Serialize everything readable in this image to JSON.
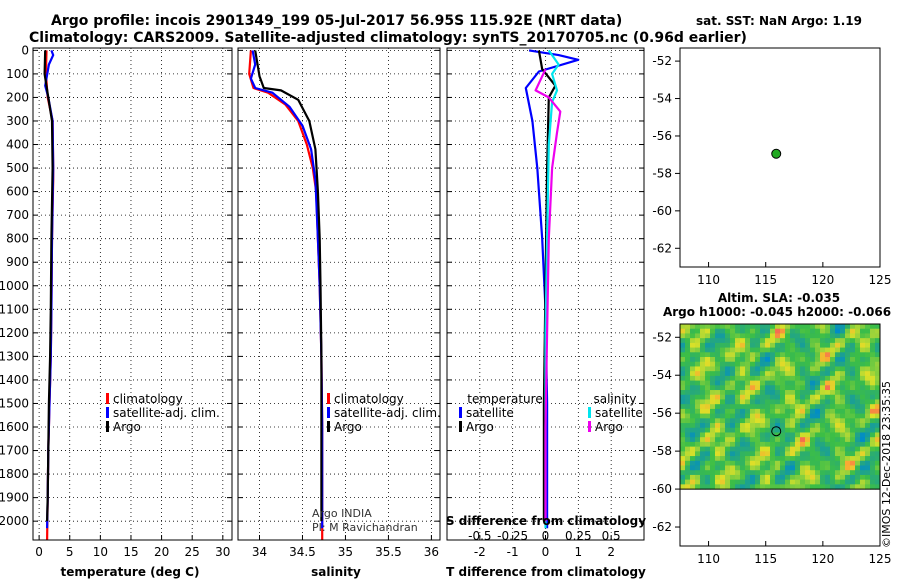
{
  "header": {
    "title_line1": "Argo profile: incois 2901349_199 05-Jul-2017 56.95S 115.92E (NRT data)",
    "title_line2": "Climatology: CARS2009. Satellite-adjusted climatology: synTS_20170705.nc (0.96d earlier)"
  },
  "colors": {
    "climatology": "#ff0000",
    "satellite": "#0000ff",
    "argo": "#000000",
    "sal_satellite": "#00e5ee",
    "sal_argo": "#ee00ee",
    "marker": "#22aa22"
  },
  "chart_data": [
    {
      "id": "temperature",
      "type": "line",
      "xlabel": "temperature (deg C)",
      "xlim": [
        -1,
        31.5
      ],
      "ylim": [
        2080,
        -10
      ],
      "xticks": [
        0,
        5,
        10,
        15,
        20,
        25,
        30
      ],
      "yticks": [
        0,
        100,
        200,
        300,
        400,
        500,
        600,
        700,
        800,
        900,
        1000,
        1100,
        1200,
        1300,
        1400,
        1500,
        1600,
        1700,
        1800,
        1900,
        2000
      ],
      "legend": [
        "climatology",
        "satellite-adj. clim.",
        "Argo"
      ],
      "series": [
        {
          "name": "climatology",
          "color": "#ff0000",
          "points": [
            [
              1.2,
              0
            ],
            [
              1.1,
              100
            ],
            [
              1.4,
              200
            ],
            [
              2.2,
              300
            ],
            [
              2.3,
              500
            ],
            [
              2.3,
              550
            ],
            [
              2.1,
              800
            ],
            [
              2.0,
              1100
            ],
            [
              1.9,
              1300
            ],
            [
              1.7,
              1500
            ],
            [
              1.5,
              1700
            ],
            [
              1.4,
              1900
            ],
            [
              1.3,
              2080
            ]
          ]
        },
        {
          "name": "satellite-adj. clim.",
          "color": "#0000ff",
          "points": [
            [
              2.0,
              0
            ],
            [
              2.3,
              20
            ],
            [
              1.6,
              60
            ],
            [
              1.0,
              150
            ],
            [
              1.5,
              200
            ],
            [
              2.2,
              300
            ],
            [
              2.3,
              500
            ],
            [
              2.1,
              800
            ],
            [
              2.0,
              1100
            ],
            [
              1.9,
              1300
            ],
            [
              1.7,
              1500
            ],
            [
              1.5,
              1700
            ],
            [
              1.4,
              1900
            ],
            [
              1.3,
              2030
            ]
          ]
        },
        {
          "name": "Argo",
          "color": "#000000",
          "points": [
            [
              1.0,
              0
            ],
            [
              0.9,
              100
            ],
            [
              1.5,
              200
            ],
            [
              2.1,
              300
            ],
            [
              2.2,
              500
            ],
            [
              2.0,
              800
            ],
            [
              1.9,
              1100
            ],
            [
              1.8,
              1300
            ],
            [
              1.6,
              1500
            ],
            [
              1.5,
              1700
            ],
            [
              1.4,
              1900
            ],
            [
              1.3,
              2000
            ]
          ]
        }
      ]
    },
    {
      "id": "salinity",
      "type": "line",
      "xlabel": "salinity",
      "xlim": [
        33.75,
        36.1
      ],
      "ylim": [
        2080,
        -10
      ],
      "xticks": [
        34,
        34.5,
        35,
        35.5,
        36
      ],
      "xticklabels": [
        "34",
        "34.5",
        "35",
        "35.5",
        "36"
      ],
      "legend": [
        "climatology",
        "satellite-adj. clim.",
        "Argo"
      ],
      "annotation": [
        "Argo INDIA",
        "PI: M Ravichandran"
      ],
      "series": [
        {
          "name": "climatology",
          "color": "#ff0000",
          "points": [
            [
              33.9,
              0
            ],
            [
              33.88,
              100
            ],
            [
              33.93,
              160
            ],
            [
              34.1,
              180
            ],
            [
              34.3,
              230
            ],
            [
              34.45,
              300
            ],
            [
              34.55,
              400
            ],
            [
              34.62,
              500
            ],
            [
              34.66,
              600
            ],
            [
              34.68,
              800
            ],
            [
              34.7,
              1000
            ],
            [
              34.72,
              1300
            ],
            [
              34.73,
              1600
            ],
            [
              34.73,
              1900
            ],
            [
              34.73,
              2080
            ]
          ]
        },
        {
          "name": "satellite-adj. clim.",
          "color": "#0000ff",
          "points": [
            [
              33.92,
              0
            ],
            [
              33.95,
              60
            ],
            [
              33.9,
              120
            ],
            [
              33.95,
              160
            ],
            [
              34.15,
              180
            ],
            [
              34.35,
              240
            ],
            [
              34.5,
              320
            ],
            [
              34.6,
              420
            ],
            [
              34.65,
              550
            ],
            [
              34.68,
              800
            ],
            [
              34.7,
              1000
            ],
            [
              34.72,
              1300
            ],
            [
              34.73,
              1600
            ],
            [
              34.73,
              1900
            ],
            [
              34.73,
              2030
            ]
          ]
        },
        {
          "name": "Argo",
          "color": "#000000",
          "points": [
            [
              33.95,
              0
            ],
            [
              34.0,
              110
            ],
            [
              34.05,
              160
            ],
            [
              34.25,
              170
            ],
            [
              34.45,
              210
            ],
            [
              34.58,
              300
            ],
            [
              34.65,
              420
            ],
            [
              34.68,
              600
            ],
            [
              34.7,
              800
            ],
            [
              34.71,
              1000
            ],
            [
              34.72,
              1300
            ],
            [
              34.72,
              1600
            ],
            [
              34.72,
              2000
            ]
          ]
        }
      ]
    },
    {
      "id": "difference",
      "type": "line",
      "xlabel": "T difference from climatology",
      "xlabel_top": "S difference from climatology",
      "xlim": [
        -3,
        3
      ],
      "ylim": [
        2080,
        -10
      ],
      "xticks": [
        -2,
        -1,
        0,
        1,
        2
      ],
      "xticklabels": [
        "-2",
        "-1",
        "0",
        "1",
        "2"
      ],
      "sticks": [
        -0.5,
        -0.25,
        0,
        0.25,
        0.5
      ],
      "sticklabels": [
        "-0.5",
        "-0.25",
        "0",
        "0.25",
        "0.5"
      ],
      "legend_temperature": {
        "title": "temperature",
        "items": [
          "satellite",
          "Argo"
        ]
      },
      "legend_salinity": {
        "title": "salinity",
        "items": [
          "satellite",
          "Argo"
        ]
      },
      "series": [
        {
          "name": "T satellite",
          "color": "#0000ff",
          "points": [
            [
              -0.5,
              0
            ],
            [
              0.4,
              20
            ],
            [
              1.0,
              40
            ],
            [
              -0.2,
              90
            ],
            [
              -0.6,
              160
            ],
            [
              -0.4,
              300
            ],
            [
              -0.25,
              500
            ],
            [
              -0.1,
              800
            ],
            [
              0.0,
              1100
            ],
            [
              0.05,
              1500
            ],
            [
              0.05,
              2030
            ]
          ]
        },
        {
          "name": "T Argo",
          "color": "#000000",
          "points": [
            [
              -0.2,
              0
            ],
            [
              -0.1,
              80
            ],
            [
              0.3,
              150
            ],
            [
              0.1,
              200
            ],
            [
              0.05,
              500
            ],
            [
              0.0,
              1000
            ],
            [
              -0.05,
              1500
            ],
            [
              -0.05,
              2000
            ]
          ]
        },
        {
          "name": "S satellite",
          "color": "#00e5ee",
          "points": [
            [
              0.1,
              0
            ],
            [
              0.4,
              60
            ],
            [
              0.2,
              100
            ],
            [
              0.35,
              170
            ],
            [
              0.2,
              220
            ],
            [
              0.1,
              400
            ],
            [
              0.05,
              800
            ],
            [
              0.0,
              1200
            ],
            [
              0.0,
              1600
            ],
            [
              0.0,
              2030
            ]
          ]
        },
        {
          "name": "S Argo",
          "color": "#ee00ee",
          "points": [
            [
              0.0,
              80
            ],
            [
              -0.2,
              140
            ],
            [
              -0.3,
              170
            ],
            [
              0.1,
              200
            ],
            [
              0.45,
              260
            ],
            [
              0.35,
              350
            ],
            [
              0.2,
              500
            ],
            [
              0.1,
              800
            ],
            [
              0.05,
              1200
            ],
            [
              0.0,
              1600
            ],
            [
              0.0,
              2000
            ]
          ]
        }
      ]
    },
    {
      "id": "sst_map",
      "type": "scatter",
      "title": "sat. SST: NaN Argo: 1.19",
      "xlim": [
        107.5,
        125
      ],
      "ylim": [
        -63,
        -51.3
      ],
      "xticks": [
        110,
        115,
        120,
        125
      ],
      "yticks": [
        -52,
        -54,
        -56,
        -58,
        -60,
        -62
      ],
      "points": [
        [
          115.92,
          -56.95
        ]
      ]
    },
    {
      "id": "sla_map",
      "type": "heatmap",
      "title_line1": "Altim. SLA: -0.035",
      "title_line2": "Argo h1000: -0.045 h2000: -0.066",
      "xlim": [
        107.5,
        125
      ],
      "ylim": [
        -63,
        -51.3
      ],
      "data_ylim": [
        -60,
        -51.3
      ],
      "xticks": [
        110,
        115,
        120,
        125
      ],
      "yticks": [
        -52,
        -54,
        -56,
        -58,
        -60,
        -62
      ],
      "points": [
        [
          115.92,
          -56.95
        ]
      ]
    }
  ],
  "watermark": "©IMOS 12-Dec-2018 23:35:35"
}
